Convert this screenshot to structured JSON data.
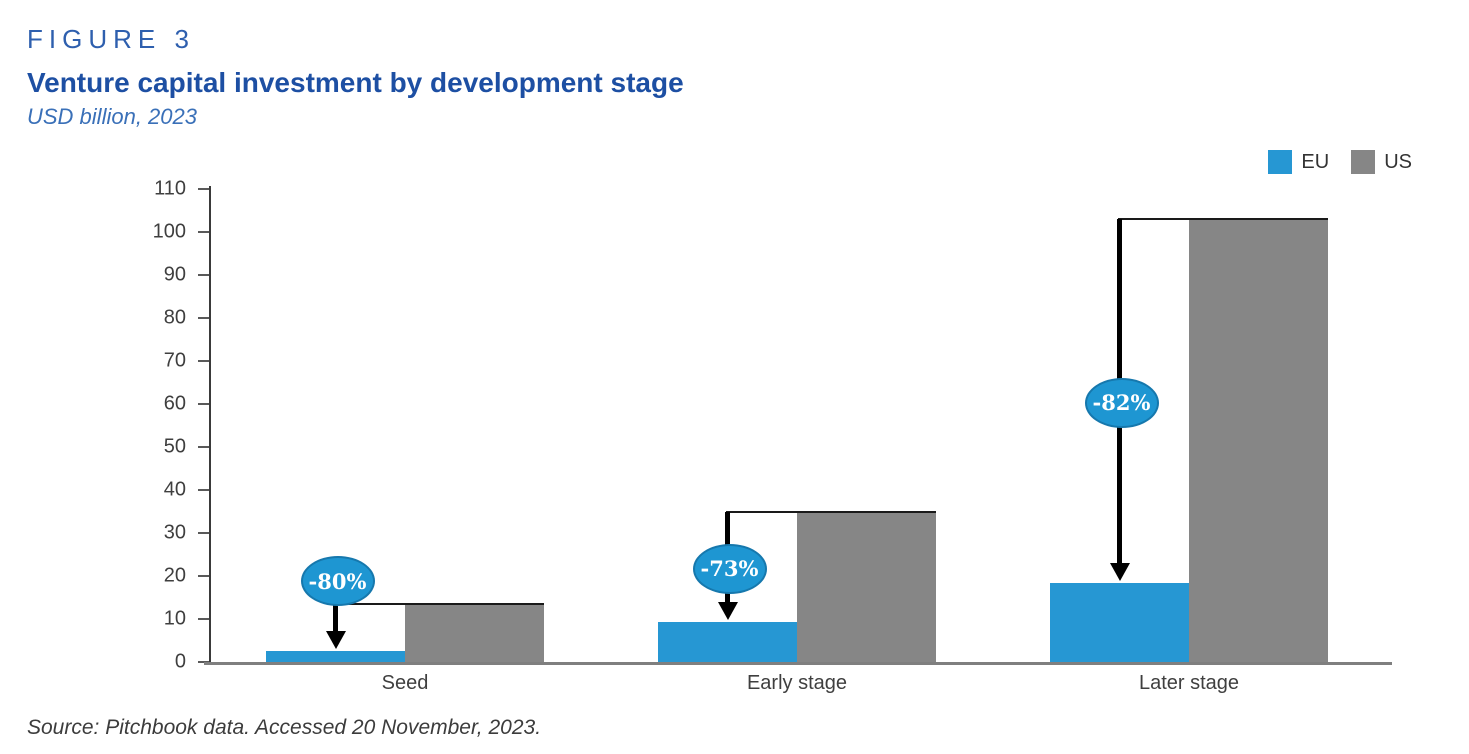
{
  "figure": {
    "label": "FIGURE 3",
    "title": "Venture capital investment by development stage",
    "subtitle": "USD billion, 2023",
    "source": "Source: Pitchbook data. Accessed 20 November, 2023."
  },
  "legend": [
    {
      "name": "EU",
      "color": "#2697d3"
    },
    {
      "name": "US",
      "color": "#868686"
    }
  ],
  "chart_data": {
    "type": "bar",
    "title": "Venture capital investment by development stage",
    "subtitle": "USD billion, 2023",
    "unit": "USD billion",
    "categories": [
      "Seed",
      "Early stage",
      "Later stage"
    ],
    "series": [
      {
        "name": "EU",
        "color": "#2697d3",
        "values": [
          2.6,
          9.4,
          18.4
        ]
      },
      {
        "name": "US",
        "color": "#868686",
        "values": [
          13.4,
          34.8,
          103
        ]
      }
    ],
    "annotations": [
      {
        "category": "Seed",
        "label": "-80%",
        "badge_position": "above-line"
      },
      {
        "category": "Early stage",
        "label": "-73%",
        "badge_position": "mid-arrow"
      },
      {
        "category": "Later stage",
        "label": "-82%",
        "badge_position": "mid-arrow"
      }
    ],
    "ylim": [
      0,
      110
    ],
    "ytick_step": 10,
    "grid": false,
    "legend_position": "top-right",
    "colors": {
      "badge_fill": "#1e96d2",
      "badge_border": "#1678ad",
      "arrow": "#000000",
      "axis": "#3a3a3a",
      "baseline": "#7f7f7f",
      "tick_label": "#3f3f3f"
    }
  }
}
